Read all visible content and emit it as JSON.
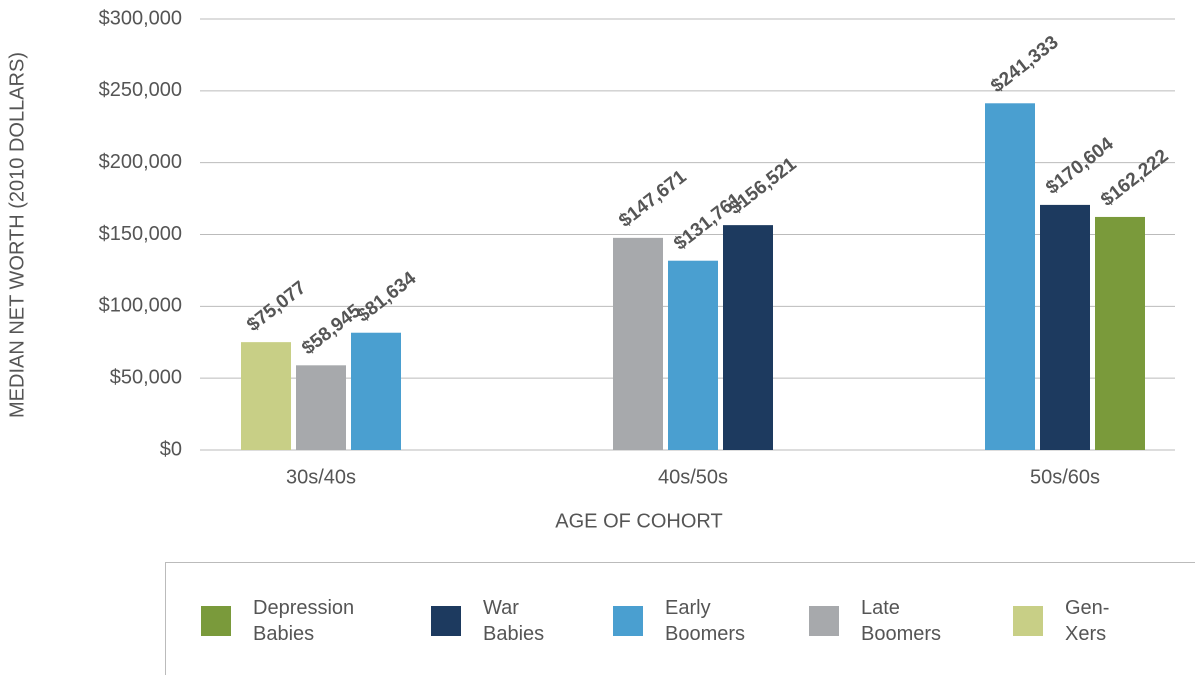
{
  "chart_data": {
    "type": "bar",
    "y_label": "MEDIAN NET WORTH (2010 DOLLARS)",
    "x_label": "AGE OF COHORT",
    "categories": [
      "30s/40s",
      "40s/50s",
      "50s/60s"
    ],
    "series": [
      {
        "name": "Depression Babies",
        "color": "#7a9a3b",
        "values": [
          null,
          null,
          162222
        ],
        "value_labels": [
          null,
          null,
          "$162,222"
        ]
      },
      {
        "name": "War Babies",
        "color": "#1d3a5f",
        "values": [
          null,
          156521,
          170604
        ],
        "value_labels": [
          null,
          "$156,521",
          "$170,604"
        ]
      },
      {
        "name": "Early Boomers",
        "color": "#4a9fd0",
        "values": [
          81634,
          131761,
          241333
        ],
        "value_labels": [
          "$81,634",
          "$131,761",
          "$241,333"
        ]
      },
      {
        "name": "Late Boomers",
        "color": "#a7a9ac",
        "values": [
          58945,
          147671,
          null
        ],
        "value_labels": [
          "$58,945",
          "$147,671",
          null
        ]
      },
      {
        "name": "Gen-Xers",
        "color": "#c8cf86",
        "values": [
          75077,
          null,
          null
        ],
        "value_labels": [
          "$75,077",
          null,
          null
        ]
      }
    ],
    "ylim": [
      0,
      300000
    ],
    "yticks": [
      {
        "value": 0,
        "label": "$0"
      },
      {
        "value": 50000,
        "label": "$50,000"
      },
      {
        "value": 100000,
        "label": "$100,000"
      },
      {
        "value": 150000,
        "label": "$150,000"
      },
      {
        "value": 200000,
        "label": "$200,000"
      },
      {
        "value": 250000,
        "label": "$250,000"
      },
      {
        "value": 300000,
        "label": "$300,000"
      }
    ],
    "grid": true,
    "legend": "bottom"
  }
}
